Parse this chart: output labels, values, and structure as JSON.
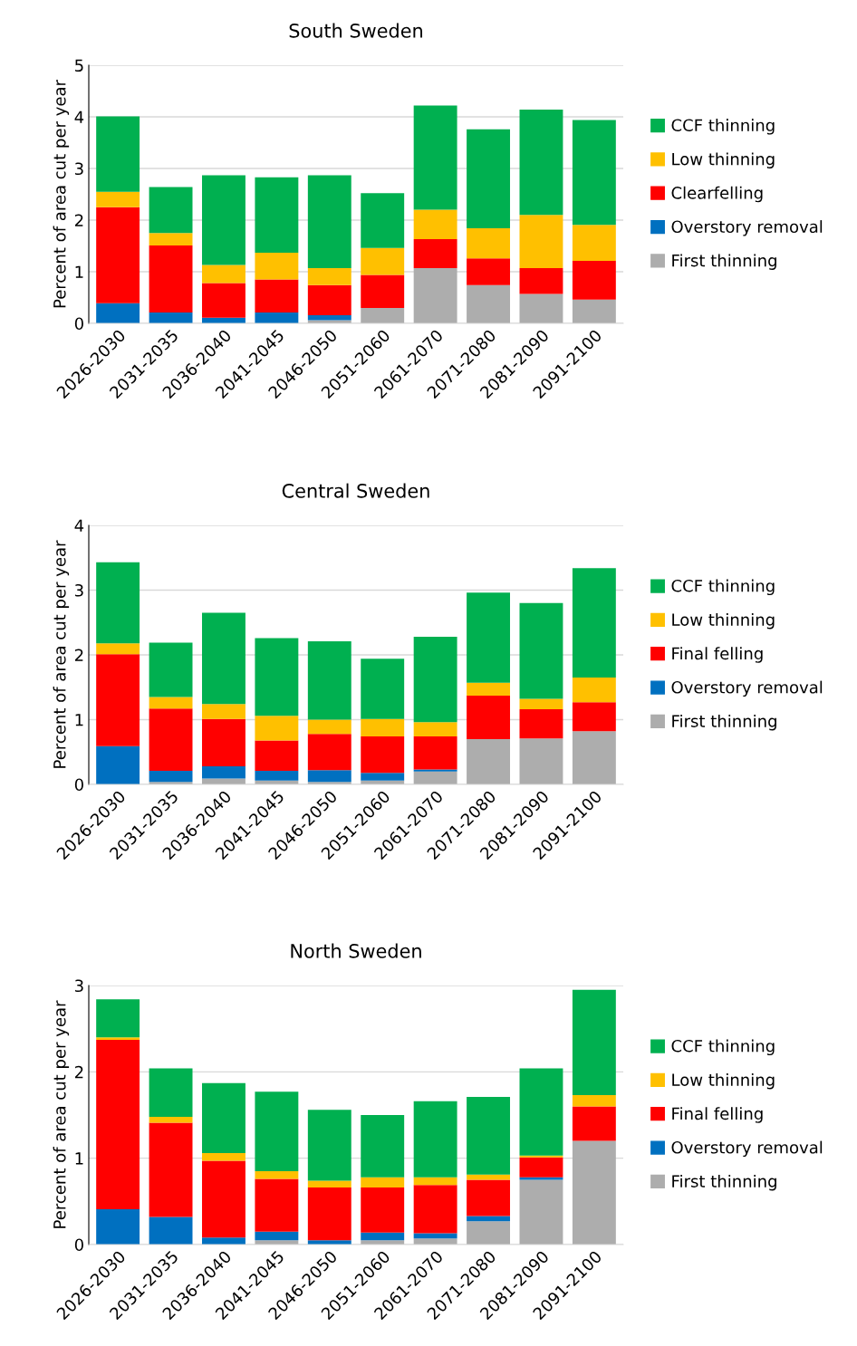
{
  "chart_data": [
    {
      "type": "bar",
      "stacked": true,
      "title": "South Sweden",
      "ylabel": "Percent of area cut per year",
      "categories": [
        "2026-2030",
        "2031-2035",
        "2036-2040",
        "2041-2045",
        "2046-2050",
        "2051-2060",
        "2061-2070",
        "2071-2080",
        "2081-2090",
        "2091-2100"
      ],
      "ylim": [
        0,
        5
      ],
      "yticks": [
        0,
        1,
        2,
        3,
        4,
        5
      ],
      "grid": "y",
      "legend": "right",
      "series": [
        {
          "name": "First thinning",
          "color": "#adadad",
          "values": [
            0,
            0,
            0,
            0,
            0.06,
            0.3,
            1.07,
            0.74,
            0.57,
            0.46
          ]
        },
        {
          "name": "Overstory removal",
          "color": "#0070c0",
          "values": [
            0.39,
            0.21,
            0.11,
            0.21,
            0.1,
            0,
            0,
            0,
            0,
            0
          ]
        },
        {
          "name": "Clearfelling",
          "color": "#ff0000",
          "values": [
            1.86,
            1.3,
            0.67,
            0.64,
            0.58,
            0.64,
            0.56,
            0.52,
            0.5,
            0.75
          ]
        },
        {
          "name": "Low thinning",
          "color": "#ffc000",
          "values": [
            0.3,
            0.24,
            0.35,
            0.52,
            0.33,
            0.52,
            0.57,
            0.58,
            1.03,
            0.7
          ]
        },
        {
          "name": "CCF thinning",
          "color": "#00b050",
          "values": [
            1.46,
            0.89,
            1.74,
            1.46,
            1.8,
            1.06,
            2.02,
            1.92,
            2.04,
            2.03
          ]
        }
      ]
    },
    {
      "type": "bar",
      "stacked": true,
      "title": "Central Sweden",
      "ylabel": "Percent of area cut per year",
      "categories": [
        "2026-2030",
        "2031-2035",
        "2036-2040",
        "2041-2045",
        "2046-2050",
        "2051-2060",
        "2061-2070",
        "2071-2080",
        "2081-2090",
        "2091-2100"
      ],
      "ylim": [
        0,
        4
      ],
      "yticks": [
        0,
        1,
        2,
        3,
        4
      ],
      "grid": "y",
      "legend": "right",
      "series": [
        {
          "name": "First thinning",
          "color": "#adadad",
          "values": [
            null,
            0.04,
            0.09,
            0.06,
            0.04,
            0.06,
            0.2,
            0.7,
            0.71,
            0.82
          ]
        },
        {
          "name": "Overstory removal",
          "color": "#0070c0",
          "values": [
            0.59,
            0.17,
            0.19,
            0.15,
            0.18,
            0.12,
            0.03,
            0,
            0,
            0
          ]
        },
        {
          "name": "Final felling",
          "color": "#ff0000",
          "values": [
            1.42,
            0.96,
            0.73,
            0.47,
            0.56,
            0.56,
            0.51,
            0.67,
            0.45,
            0.45
          ]
        },
        {
          "name": "Low thinning",
          "color": "#ffc000",
          "values": [
            0.17,
            0.18,
            0.23,
            0.38,
            0.22,
            0.27,
            0.22,
            0.2,
            0.16,
            0.38
          ]
        },
        {
          "name": "CCF thinning",
          "color": "#00b050",
          "values": [
            1.25,
            0.84,
            1.41,
            1.2,
            1.21,
            0.93,
            1.32,
            1.39,
            1.48,
            1.69
          ]
        }
      ]
    },
    {
      "type": "bar",
      "stacked": true,
      "title": "North Sweden",
      "ylabel": "Percent of area cut per year",
      "categories": [
        "2026-2030",
        "2031-2035",
        "2036-2040",
        "2041-2045",
        "2046-2050",
        "2051-2060",
        "2061-2070",
        "2071-2080",
        "2081-2090",
        "2091-2100"
      ],
      "ylim": [
        0,
        3
      ],
      "yticks": [
        0,
        1,
        2,
        3
      ],
      "grid": "y",
      "legend": "right",
      "series": [
        {
          "name": "First thinning",
          "color": "#adadad",
          "values": [
            null,
            0,
            null,
            0.05,
            null,
            0.05,
            0.07,
            0.27,
            0.75,
            1.2
          ]
        },
        {
          "name": "Overstory removal",
          "color": "#0070c0",
          "values": [
            0.41,
            0.32,
            0.08,
            0.1,
            0.05,
            0.09,
            0.06,
            0.06,
            0.03,
            0
          ]
        },
        {
          "name": "Final felling",
          "color": "#ff0000",
          "values": [
            1.96,
            1.09,
            0.89,
            0.61,
            0.61,
            0.52,
            0.56,
            0.42,
            0.23,
            0.4
          ]
        },
        {
          "name": "Low thinning",
          "color": "#ffc000",
          "values": [
            0.03,
            0.07,
            0.09,
            0.09,
            0.08,
            0.12,
            0.09,
            0.06,
            0.02,
            0.13
          ]
        },
        {
          "name": "CCF thinning",
          "color": "#00b050",
          "values": [
            0.44,
            0.56,
            0.81,
            0.92,
            0.82,
            0.72,
            0.88,
            0.9,
            1.01,
            1.22
          ]
        }
      ]
    }
  ]
}
